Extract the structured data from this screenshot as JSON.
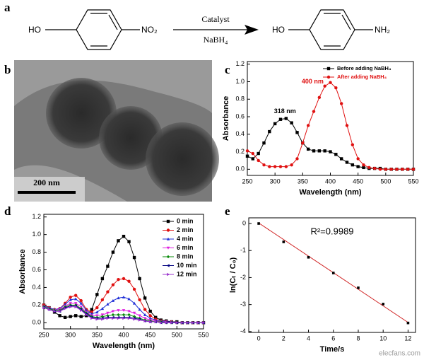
{
  "scheme": {
    "label": "a",
    "reactant_left": "HO",
    "reactant_right": "NO₂",
    "reagent_top": "Catalyst",
    "reagent_bottom": "NaBH₄",
    "product_left": "HO",
    "product_right": "NH₂"
  },
  "micrograph": {
    "label": "b",
    "scale_bar": "200 nm"
  },
  "watermark": "elecfans.com",
  "chart_data": [
    {
      "type": "line",
      "label": "c",
      "x_label": "Wavelength (nm)",
      "y_label": "Absorbance",
      "x": [
        250,
        260,
        270,
        280,
        290,
        300,
        310,
        320,
        330,
        340,
        350,
        360,
        370,
        380,
        390,
        400,
        410,
        420,
        430,
        440,
        450,
        460,
        470,
        480,
        490,
        500,
        510,
        520,
        530,
        540,
        550
      ],
      "series": [
        {
          "name": "Before adding NaBH₄",
          "color": "#000000",
          "marker": "square",
          "values": [
            0.15,
            0.12,
            0.18,
            0.3,
            0.43,
            0.52,
            0.57,
            0.58,
            0.53,
            0.42,
            0.3,
            0.23,
            0.21,
            0.21,
            0.21,
            0.2,
            0.17,
            0.12,
            0.08,
            0.05,
            0.03,
            0.02,
            0.01,
            0.01,
            0.01,
            0,
            0,
            0,
            0,
            0,
            0
          ]
        },
        {
          "name": "After adding NaBH₄",
          "color": "#e01010",
          "marker": "circle",
          "values": [
            0.21,
            0.18,
            0.1,
            0.05,
            0.03,
            0.03,
            0.03,
            0.03,
            0.05,
            0.12,
            0.3,
            0.5,
            0.66,
            0.82,
            0.95,
            0.99,
            0.93,
            0.75,
            0.5,
            0.28,
            0.12,
            0.05,
            0.02,
            0.01,
            0,
            0,
            0,
            0,
            0,
            0,
            0
          ]
        }
      ],
      "annotations": [
        "318 nm",
        "400 nm"
      ],
      "xlim": [
        250,
        550
      ],
      "xticks": [
        250,
        300,
        350,
        400,
        450,
        500,
        550
      ],
      "ylim": [
        -0.07,
        1.23
      ],
      "yticks": [
        {
          "value": 0,
          "label": "0.0"
        },
        0.2,
        0.4,
        0.6,
        0.8,
        {
          "value": 1,
          "label": "1.0"
        },
        1.2
      ],
      "legend": "upper right"
    },
    {
      "type": "line",
      "label": "d",
      "x_label": "Wavelength (nm)",
      "y_label": "Absorbance",
      "x": [
        250,
        260,
        270,
        280,
        290,
        300,
        310,
        320,
        330,
        340,
        350,
        360,
        370,
        380,
        390,
        400,
        410,
        420,
        430,
        440,
        450,
        460,
        470,
        480,
        490,
        500,
        510,
        520,
        530,
        540,
        550
      ],
      "series": [
        {
          "name": "0 min",
          "color": "#000000",
          "marker": "square",
          "values": [
            0.2,
            0.17,
            0.12,
            0.08,
            0.06,
            0.07,
            0.08,
            0.07,
            0.08,
            0.15,
            0.32,
            0.5,
            0.64,
            0.8,
            0.93,
            0.98,
            0.92,
            0.74,
            0.5,
            0.28,
            0.13,
            0.06,
            0.03,
            0.02,
            0.01,
            0.01,
            0,
            0,
            0,
            0,
            0
          ]
        },
        {
          "name": "2 min",
          "color": "#e01010",
          "marker": "circle",
          "values": [
            0.2,
            0.17,
            0.15,
            0.16,
            0.22,
            0.29,
            0.31,
            0.25,
            0.15,
            0.12,
            0.17,
            0.26,
            0.35,
            0.43,
            0.49,
            0.5,
            0.47,
            0.38,
            0.26,
            0.15,
            0.08,
            0.04,
            0.02,
            0.01,
            0.01,
            0,
            0,
            0,
            0,
            0,
            0
          ]
        },
        {
          "name": "4 min",
          "color": "#1f2fd6",
          "marker": "triangle-up",
          "values": [
            0.19,
            0.17,
            0.15,
            0.16,
            0.21,
            0.26,
            0.27,
            0.22,
            0.14,
            0.1,
            0.12,
            0.16,
            0.21,
            0.25,
            0.28,
            0.29,
            0.27,
            0.22,
            0.15,
            0.09,
            0.05,
            0.03,
            0.02,
            0.01,
            0.01,
            0,
            0,
            0,
            0,
            0,
            0
          ]
        },
        {
          "name": "6 min",
          "color": "#e020e0",
          "marker": "triangle-down",
          "values": [
            0.18,
            0.16,
            0.14,
            0.15,
            0.19,
            0.22,
            0.22,
            0.18,
            0.12,
            0.08,
            0.08,
            0.09,
            0.11,
            0.13,
            0.14,
            0.14,
            0.13,
            0.11,
            0.08,
            0.05,
            0.03,
            0.02,
            0.01,
            0.01,
            0,
            0,
            0,
            0,
            0,
            0,
            0
          ]
        },
        {
          "name": "8 min",
          "color": "#0a8a0a",
          "marker": "diamond",
          "values": [
            0.18,
            0.16,
            0.14,
            0.14,
            0.18,
            0.2,
            0.2,
            0.16,
            0.11,
            0.07,
            0.06,
            0.07,
            0.08,
            0.09,
            0.09,
            0.09,
            0.09,
            0.07,
            0.05,
            0.03,
            0.02,
            0.01,
            0.01,
            0,
            0,
            0,
            0,
            0,
            0,
            0,
            0
          ]
        },
        {
          "name": "10 min",
          "color": "#000080",
          "marker": "triangle-left",
          "values": [
            0.17,
            0.15,
            0.13,
            0.13,
            0.17,
            0.19,
            0.19,
            0.15,
            0.1,
            0.06,
            0.05,
            0.05,
            0.06,
            0.06,
            0.06,
            0.06,
            0.06,
            0.05,
            0.04,
            0.02,
            0.01,
            0.01,
            0,
            0,
            0,
            0,
            0,
            0,
            0,
            0,
            0
          ]
        },
        {
          "name": "12 min",
          "color": "#9932cc",
          "marker": "triangle-right",
          "values": [
            0.17,
            0.15,
            0.13,
            0.13,
            0.16,
            0.18,
            0.18,
            0.14,
            0.09,
            0.05,
            0.04,
            0.04,
            0.05,
            0.05,
            0.05,
            0.05,
            0.05,
            0.04,
            0.03,
            0.02,
            0.01,
            0.01,
            0,
            0,
            0,
            0,
            0,
            0,
            0,
            0,
            0
          ]
        }
      ],
      "xlim": [
        250,
        550
      ],
      "xticks": [
        250,
        300,
        350,
        400,
        450,
        500,
        550
      ],
      "ylim": [
        -0.07,
        1.23
      ],
      "yticks": [
        {
          "value": 0,
          "label": "0.0"
        },
        0.2,
        0.4,
        0.6,
        0.8,
        {
          "value": 1,
          "label": "1.0"
        },
        1.2
      ],
      "legend": "upper right"
    },
    {
      "type": "scatter",
      "label": "e",
      "x_label": "Time/s",
      "y_label": "ln(Cₜ / C₀)",
      "x": [
        0,
        2,
        4,
        6,
        8,
        10,
        12
      ],
      "values": [
        0,
        -0.68,
        -1.25,
        -1.83,
        -2.38,
        -2.98,
        -3.68
      ],
      "color": "#000000",
      "fit": {
        "x": [
          0,
          12
        ],
        "values": [
          0.02,
          -3.66
        ],
        "color": "#d02020"
      },
      "annotation": "R²=0.9989",
      "xlim": [
        -0.8,
        12.6
      ],
      "xticks": [
        0,
        2,
        4,
        6,
        8,
        10,
        12
      ],
      "ylim": [
        -4.03,
        0.21
      ],
      "yticks": [
        0,
        -1,
        -2,
        -3,
        -4
      ]
    }
  ]
}
